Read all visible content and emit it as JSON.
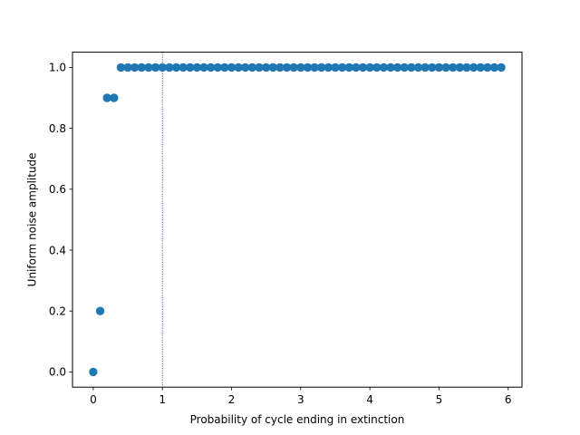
{
  "chart_data": {
    "type": "scatter",
    "title": "",
    "xlabel": "Probability of cycle ending in extinction",
    "ylabel": "Uniform noise amplitude",
    "xlim": [
      -0.3,
      6.2
    ],
    "ylim": [
      -0.05,
      1.05
    ],
    "x_ticks": [
      0,
      1,
      2,
      3,
      4,
      5,
      6
    ],
    "x_tick_labels": [
      "0",
      "1",
      "2",
      "3",
      "4",
      "5",
      "6"
    ],
    "y_ticks": [
      0.0,
      0.2,
      0.4,
      0.6,
      0.8,
      1.0
    ],
    "y_tick_labels": [
      "0.0",
      "0.2",
      "0.4",
      "0.6",
      "0.8",
      "1.0"
    ],
    "grid": false,
    "legend": "none",
    "vline": {
      "x": 1,
      "style": "dotted",
      "color": "#0000ff"
    },
    "marker_color": "#1f77b4",
    "series": [
      {
        "x": [
          0,
          0.1,
          0.2,
          0.3,
          0.4,
          0.5,
          0.6,
          0.7,
          0.8,
          0.9,
          1.0,
          1.1,
          1.2,
          1.3,
          1.4,
          1.5,
          1.6,
          1.7,
          1.8,
          1.9,
          2.0,
          2.1,
          2.2,
          2.3,
          2.4,
          2.5,
          2.6,
          2.7,
          2.8,
          2.9,
          3.0,
          3.1,
          3.2,
          3.3,
          3.4,
          3.5,
          3.6,
          3.7,
          3.8,
          3.9,
          4.0,
          4.1,
          4.2,
          4.3,
          4.4,
          4.5,
          4.6,
          4.7,
          4.8,
          4.9,
          5.0,
          5.1,
          5.2,
          5.3,
          5.4,
          5.5,
          5.6,
          5.7,
          5.8,
          5.9
        ],
        "y": [
          0.0,
          0.2,
          0.9,
          0.9,
          1.0,
          1.0,
          1.0,
          1.0,
          1.0,
          1.0,
          1.0,
          1.0,
          1.0,
          1.0,
          1.0,
          1.0,
          1.0,
          1.0,
          1.0,
          1.0,
          1.0,
          1.0,
          1.0,
          1.0,
          1.0,
          1.0,
          1.0,
          1.0,
          1.0,
          1.0,
          1.0,
          1.0,
          1.0,
          1.0,
          1.0,
          1.0,
          1.0,
          1.0,
          1.0,
          1.0,
          1.0,
          1.0,
          1.0,
          1.0,
          1.0,
          1.0,
          1.0,
          1.0,
          1.0,
          1.0,
          1.0,
          1.0,
          1.0,
          1.0,
          1.0,
          1.0,
          1.0,
          1.0,
          1.0,
          1.0
        ]
      }
    ]
  }
}
